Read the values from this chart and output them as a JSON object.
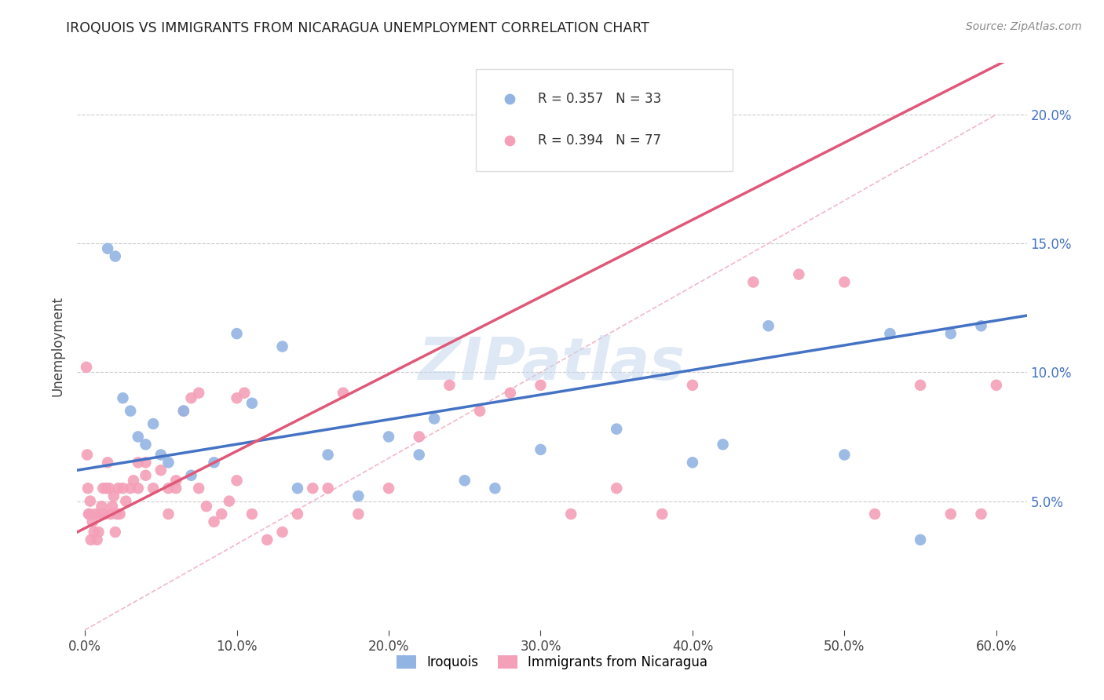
{
  "title": "IROQUOIS VS IMMIGRANTS FROM NICARAGUA UNEMPLOYMENT CORRELATION CHART",
  "source": "Source: ZipAtlas.com",
  "xlabel_vals": [
    0,
    10,
    20,
    30,
    40,
    50,
    60
  ],
  "ylabel_vals": [
    5,
    10,
    15,
    20
  ],
  "xlim": [
    -0.5,
    62
  ],
  "ylim": [
    0,
    22
  ],
  "ylabel": "Unemployment",
  "legend_iroquois": "Iroquois",
  "legend_nicaragua": "Immigrants from Nicaragua",
  "r_iroquois": "R = 0.357",
  "n_iroquois": "N = 33",
  "r_nicaragua": "R = 0.394",
  "n_nicaragua": "N = 77",
  "color_iroquois": "#92b4e3",
  "color_nicaragua": "#f4a0b8",
  "line_color_iroquois": "#4472c4",
  "line_color_nicaragua": "#e05878",
  "diag_color": "#f0b8c8",
  "watermark": "ZIPatlas",
  "iroquois_x": [
    1.5,
    2.0,
    2.5,
    3.0,
    3.5,
    4.0,
    4.5,
    5.0,
    5.5,
    6.5,
    7.0,
    8.5,
    10.0,
    11.0,
    13.0,
    14.0,
    16.0,
    18.0,
    20.0,
    22.0,
    23.0,
    25.0,
    27.0,
    30.0,
    35.0,
    40.0,
    42.0,
    45.0,
    50.0,
    53.0,
    55.0,
    57.0,
    59.0
  ],
  "iroquois_y": [
    14.8,
    14.5,
    9.0,
    8.5,
    7.5,
    7.2,
    8.0,
    6.8,
    6.5,
    8.5,
    6.0,
    6.5,
    11.5,
    8.8,
    11.0,
    5.5,
    6.8,
    5.2,
    7.5,
    6.8,
    8.2,
    5.8,
    5.5,
    7.0,
    7.8,
    6.5,
    7.2,
    11.8,
    6.8,
    11.5,
    3.5,
    11.5,
    11.8
  ],
  "nicaragua_x": [
    0.1,
    0.15,
    0.2,
    0.25,
    0.3,
    0.35,
    0.4,
    0.5,
    0.6,
    0.7,
    0.8,
    0.9,
    1.0,
    1.1,
    1.2,
    1.3,
    1.4,
    1.5,
    1.6,
    1.7,
    1.8,
    1.9,
    2.0,
    2.1,
    2.2,
    2.3,
    2.5,
    2.7,
    3.0,
    3.2,
    3.5,
    4.0,
    4.5,
    5.0,
    5.5,
    6.0,
    6.5,
    7.0,
    7.5,
    8.0,
    8.5,
    9.0,
    9.5,
    10.0,
    10.5,
    11.0,
    12.0,
    13.0,
    14.0,
    15.0,
    16.0,
    17.0,
    18.0,
    20.0,
    22.0,
    24.0,
    26.0,
    28.0,
    30.0,
    32.0,
    35.0,
    38.0,
    40.0,
    44.0,
    47.0,
    50.0,
    52.0,
    55.0,
    57.0,
    59.0,
    60.0,
    10.0,
    7.5,
    3.5,
    5.5,
    6.0,
    4.0
  ],
  "nicaragua_y": [
    10.2,
    6.8,
    5.5,
    4.5,
    4.5,
    5.0,
    3.5,
    4.2,
    3.8,
    4.5,
    3.5,
    3.8,
    4.5,
    4.8,
    5.5,
    4.5,
    5.5,
    6.5,
    5.5,
    4.5,
    4.8,
    5.2,
    3.8,
    4.5,
    5.5,
    4.5,
    5.5,
    5.0,
    5.5,
    5.8,
    5.5,
    6.5,
    5.5,
    6.2,
    5.5,
    5.8,
    8.5,
    9.0,
    5.5,
    4.8,
    4.2,
    4.5,
    5.0,
    5.8,
    9.2,
    4.5,
    3.5,
    3.8,
    4.5,
    5.5,
    5.5,
    9.2,
    4.5,
    5.5,
    7.5,
    9.5,
    8.5,
    9.2,
    9.5,
    4.5,
    5.5,
    4.5,
    9.5,
    13.5,
    13.8,
    13.5,
    4.5,
    9.5,
    4.5,
    4.5,
    9.5,
    9.0,
    9.2,
    6.5,
    4.5,
    5.5,
    6.0
  ]
}
